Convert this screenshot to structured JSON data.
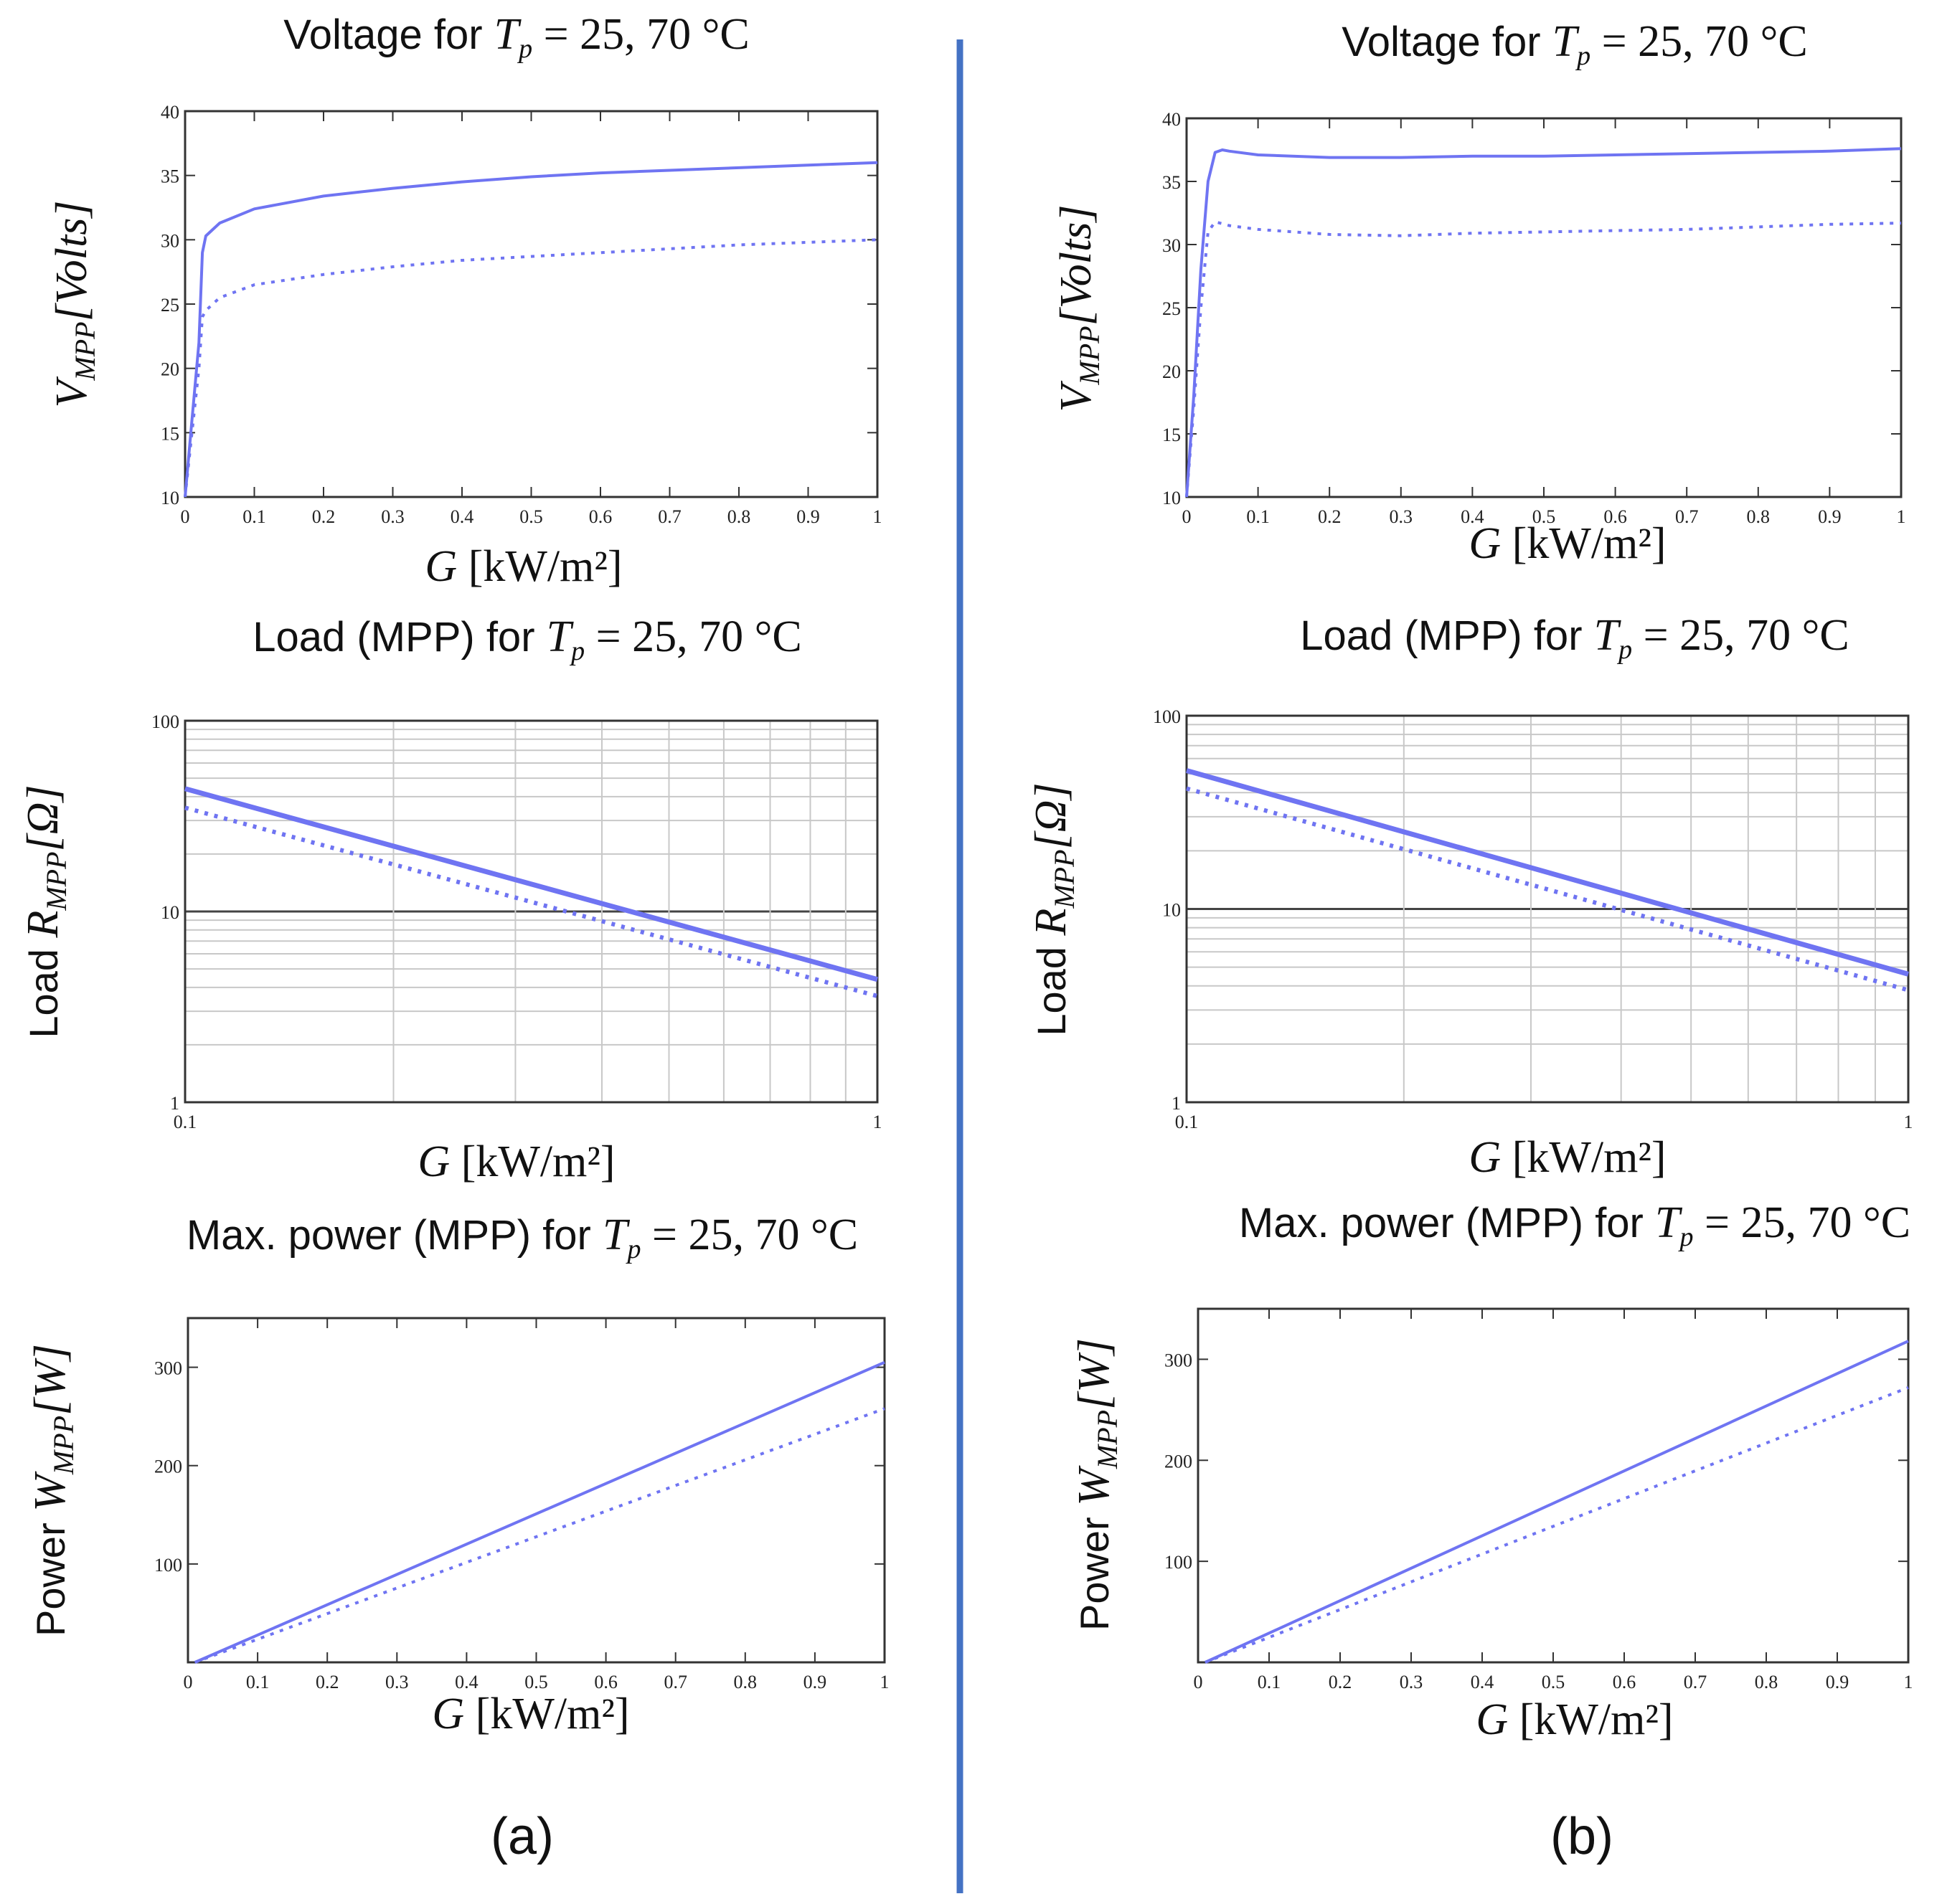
{
  "panel_labels": [
    "(a)",
    "(b)"
  ],
  "colors": {
    "series": "#6f74f2",
    "divider": "#4472c4",
    "frame": "#333333"
  },
  "titles": {
    "voltage_prefix": "Voltage for",
    "load_prefix": "Load (MPP) for",
    "power_prefix": "Max. power (MPP) for",
    "temp_symbol": "T",
    "temp_sub": "p",
    "temp_values": "= 25, 70 °C"
  },
  "axis_labels": {
    "x_symbol": "G",
    "x_unit": "[kW/m²]",
    "voltage_y_symbol": "V",
    "voltage_y_sub": "MPP",
    "voltage_y_unit": "[Volts]",
    "load_y_prefix": "Load",
    "load_y_symbol": "R",
    "load_y_sub": "MPP",
    "load_y_unit": "[Ω]",
    "power_y_prefix": "Power",
    "power_y_symbol": "W",
    "power_y_sub": "MPP",
    "power_y_unit": "[W]"
  },
  "chart_data": [
    {
      "id": "a-voltage",
      "panel": "(a)",
      "type": "line",
      "title": "Voltage for T_p = 25, 70 °C",
      "xlabel": "G [kW/m²]",
      "ylabel": "V_MPP [Volts]",
      "xlim": [
        0,
        1
      ],
      "ylim": [
        10,
        40
      ],
      "x_ticks": [
        "0",
        "0.1",
        "0.2",
        "0.3",
        "0.4",
        "0.5",
        "0.6",
        "0.7",
        "0.8",
        "0.9",
        "1"
      ],
      "y_ticks": [
        "10",
        "15",
        "20",
        "25",
        "30",
        "35",
        "40"
      ],
      "series": [
        {
          "name": "T_p = 25 °C",
          "style": "solid",
          "x": [
            0,
            0.01,
            0.02,
            0.025,
            0.03,
            0.05,
            0.1,
            0.2,
            0.3,
            0.4,
            0.5,
            0.6,
            0.7,
            0.8,
            0.9,
            1.0
          ],
          "y": [
            10,
            16,
            22,
            29,
            30.3,
            31.3,
            32.4,
            33.4,
            34.0,
            34.5,
            34.9,
            35.2,
            35.4,
            35.6,
            35.8,
            36.0
          ]
        },
        {
          "name": "T_p = 70 °C",
          "style": "dotted",
          "x": [
            0,
            0.01,
            0.02,
            0.025,
            0.03,
            0.05,
            0.1,
            0.2,
            0.3,
            0.4,
            0.5,
            0.6,
            0.7,
            0.8,
            0.9,
            1.0
          ],
          "y": [
            10,
            15,
            20,
            24,
            24.5,
            25.5,
            26.5,
            27.3,
            27.9,
            28.4,
            28.7,
            29.0,
            29.3,
            29.6,
            29.8,
            30.0
          ]
        }
      ]
    },
    {
      "id": "a-load",
      "panel": "(a)",
      "type": "line",
      "scale": "log-log",
      "title": "Load (MPP) for T_p = 25, 70 °C",
      "xlabel": "G [kW/m²]",
      "ylabel": "Load R_MPP [Ω]",
      "xlim": [
        0.1,
        1
      ],
      "ylim": [
        1,
        100
      ],
      "x_ticks": [
        "0.1",
        "1"
      ],
      "y_ticks": [
        "1",
        "10",
        "100"
      ],
      "series": [
        {
          "name": "T_p = 25 °C",
          "style": "solid",
          "x": [
            0.1,
            1.0
          ],
          "y": [
            44,
            4.4
          ]
        },
        {
          "name": "T_p = 70 °C",
          "style": "dotted",
          "x": [
            0.1,
            1.0
          ],
          "y": [
            35,
            3.6
          ]
        }
      ]
    },
    {
      "id": "a-power",
      "panel": "(a)",
      "type": "line",
      "title": "Max. power (MPP) for T_p = 25, 70 °C",
      "xlabel": "G [kW/m²]",
      "ylabel": "Power W_MPP [W]",
      "xlim": [
        0,
        1
      ],
      "ylim": [
        0,
        350
      ],
      "x_ticks": [
        "0",
        "0.1",
        "0.2",
        "0.3",
        "0.4",
        "0.5",
        "0.6",
        "0.7",
        "0.8",
        "0.9",
        "1"
      ],
      "y_ticks": [
        "100",
        "200",
        "300"
      ],
      "series": [
        {
          "name": "T_p = 25 °C",
          "style": "solid",
          "x": [
            0.01,
            1.0
          ],
          "y": [
            0,
            305
          ]
        },
        {
          "name": "T_p = 70 °C",
          "style": "dotted",
          "x": [
            0.01,
            1.0
          ],
          "y": [
            0,
            258
          ]
        }
      ]
    },
    {
      "id": "b-voltage",
      "panel": "(b)",
      "type": "line",
      "title": "Voltage for T_p = 25, 70 °C",
      "xlabel": "G [kW/m²]",
      "ylabel": "V_MPP [Volts]",
      "xlim": [
        0,
        1
      ],
      "ylim": [
        10,
        40
      ],
      "x_ticks": [
        "0",
        "0.1",
        "0.2",
        "0.3",
        "0.4",
        "0.5",
        "0.6",
        "0.7",
        "0.8",
        "0.9",
        "1"
      ],
      "y_ticks": [
        "10",
        "15",
        "20",
        "25",
        "30",
        "35",
        "40"
      ],
      "series": [
        {
          "name": "T_p = 25 °C",
          "style": "solid",
          "x": [
            0,
            0.01,
            0.02,
            0.03,
            0.04,
            0.05,
            0.06,
            0.1,
            0.2,
            0.3,
            0.4,
            0.5,
            0.6,
            0.7,
            0.8,
            0.9,
            1.0
          ],
          "y": [
            10,
            18,
            28,
            35,
            37.3,
            37.5,
            37.4,
            37.1,
            36.9,
            36.9,
            37.0,
            37.0,
            37.1,
            37.2,
            37.3,
            37.4,
            37.6
          ]
        },
        {
          "name": "T_p = 70 °C",
          "style": "dotted",
          "x": [
            0,
            0.01,
            0.02,
            0.03,
            0.04,
            0.06,
            0.1,
            0.2,
            0.3,
            0.4,
            0.5,
            0.6,
            0.7,
            0.8,
            0.9,
            1.0
          ],
          "y": [
            10,
            17,
            25,
            31,
            31.8,
            31.5,
            31.2,
            30.8,
            30.7,
            30.9,
            31.0,
            31.1,
            31.2,
            31.4,
            31.6,
            31.7
          ]
        }
      ]
    },
    {
      "id": "b-load",
      "panel": "(b)",
      "type": "line",
      "scale": "log-log",
      "title": "Load (MPP) for T_p = 25, 70 °C",
      "xlabel": "G [kW/m²]",
      "ylabel": "Load R_MPP [Ω]",
      "xlim": [
        0.1,
        1
      ],
      "ylim": [
        1,
        100
      ],
      "x_ticks": [
        "0.1",
        "1"
      ],
      "y_ticks": [
        "1",
        "10",
        "100"
      ],
      "series": [
        {
          "name": "T_p = 25 °C",
          "style": "solid",
          "x": [
            0.1,
            1.0
          ],
          "y": [
            52,
            4.6
          ]
        },
        {
          "name": "T_p = 70 °C",
          "style": "dotted",
          "x": [
            0.1,
            1.0
          ],
          "y": [
            42,
            3.8
          ]
        }
      ]
    },
    {
      "id": "b-power",
      "panel": "(b)",
      "type": "line",
      "title": "Max. power (MPP) for T_p = 25, 70 °C",
      "xlabel": "G [kW/m²]",
      "ylabel": "Power W_MPP [W]",
      "xlim": [
        0,
        1
      ],
      "ylim": [
        0,
        350
      ],
      "x_ticks": [
        "0",
        "0.1",
        "0.2",
        "0.3",
        "0.4",
        "0.5",
        "0.6",
        "0.7",
        "0.8",
        "0.9",
        "1"
      ],
      "y_ticks": [
        "100",
        "200",
        "300"
      ],
      "series": [
        {
          "name": "T_p = 25 °C",
          "style": "solid",
          "x": [
            0.01,
            1.0
          ],
          "y": [
            0,
            318
          ]
        },
        {
          "name": "T_p = 70 °C",
          "style": "dotted",
          "x": [
            0.01,
            1.0
          ],
          "y": [
            0,
            272
          ]
        }
      ]
    }
  ]
}
